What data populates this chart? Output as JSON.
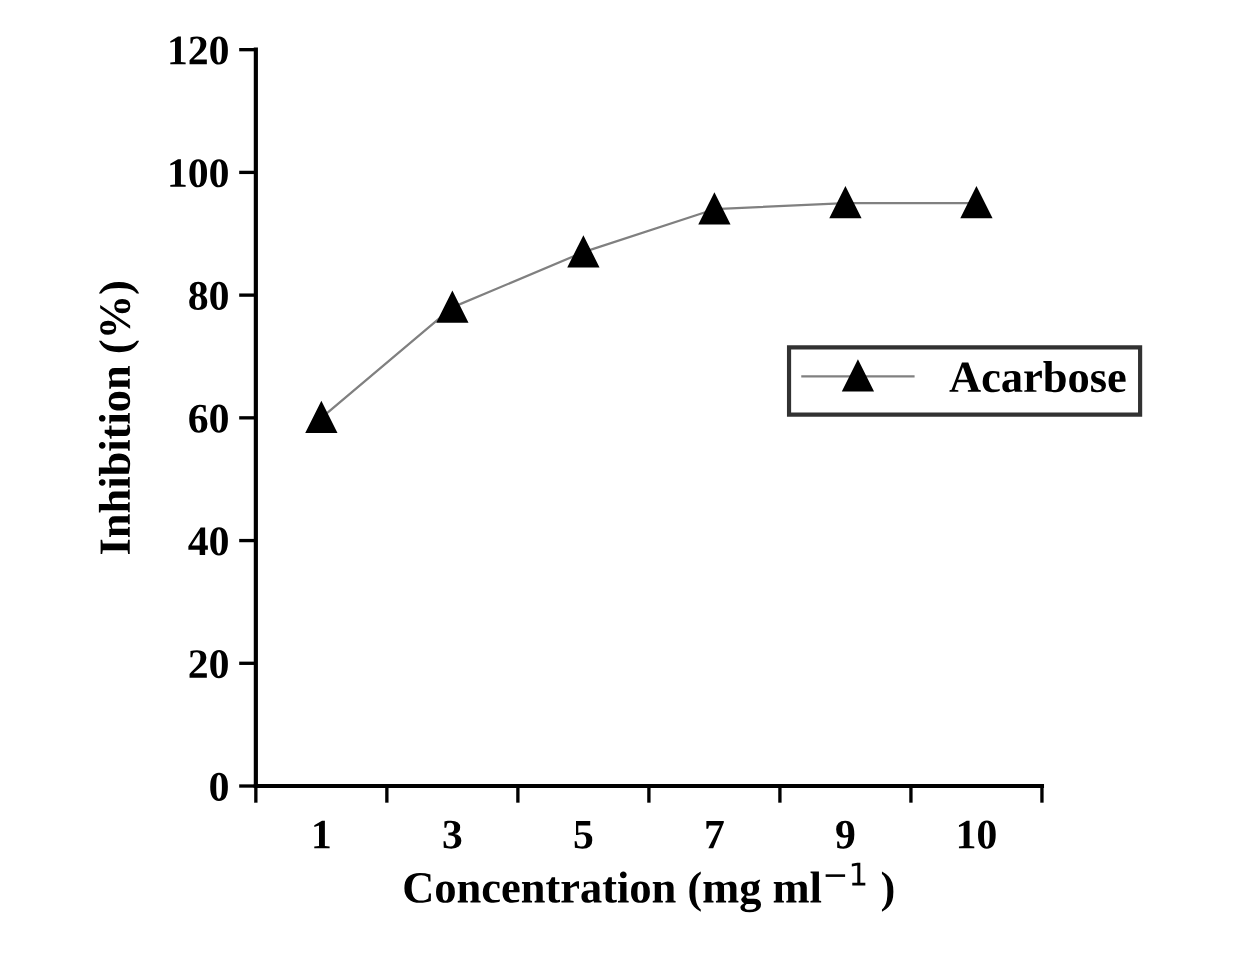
{
  "chart_data": {
    "type": "line",
    "xlabel": "Concentration (mg ml$^{−1}$ )",
    "ylabel": "Inhibition (%)",
    "categories": [
      "1",
      "3",
      "5",
      "7",
      "9",
      "10"
    ],
    "series": [
      {
        "name": "Acarbose",
        "color": "#000000",
        "values": [
          60,
          78,
          87,
          94,
          95,
          95
        ]
      }
    ],
    "ylim": [
      0,
      120
    ],
    "yticks": [
      0,
      20,
      40,
      60,
      80,
      100,
      120
    ],
    "grid": false,
    "legend": "right",
    "marker": "triangle",
    "line_style": "solid"
  }
}
